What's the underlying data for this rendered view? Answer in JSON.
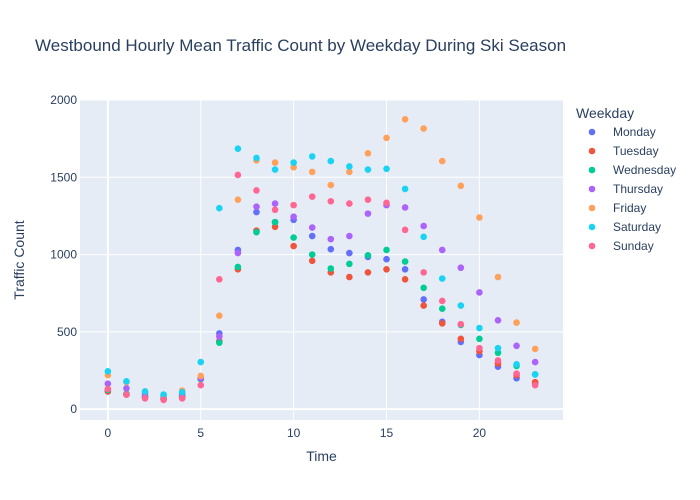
{
  "chart_data": {
    "type": "scatter",
    "title": "Westbound Hourly Mean Traffic Count by Weekday During Ski Season",
    "xlabel": "Time",
    "ylabel": "Traffic Count",
    "xlim": [
      -1.5,
      24.5
    ],
    "ylim": [
      -70,
      2000
    ],
    "x_ticks": [
      0,
      5,
      10,
      15,
      20
    ],
    "y_ticks": [
      0,
      500,
      1000,
      1500,
      2000
    ],
    "grid": true,
    "legend_title": "Weekday",
    "legend_position": "right",
    "x": [
      0,
      1,
      2,
      3,
      4,
      5,
      6,
      7,
      8,
      9,
      10,
      11,
      12,
      13,
      14,
      15,
      16,
      17,
      18,
      19,
      20,
      21,
      22,
      23
    ],
    "series": [
      {
        "name": "Monday",
        "color": "#636efa",
        "values": [
          115,
          95,
          80,
          65,
          80,
          195,
          490,
          1030,
          1275,
          1210,
          1225,
          1120,
          1035,
          1010,
          985,
          970,
          905,
          710,
          565,
          435,
          350,
          275,
          200,
          165
        ]
      },
      {
        "name": "Tuesday",
        "color": "#EF553B",
        "values": [
          115,
          95,
          80,
          65,
          75,
          195,
          440,
          905,
          1155,
          1180,
          1055,
          960,
          885,
          855,
          885,
          905,
          840,
          670,
          555,
          455,
          375,
          295,
          220,
          175
        ]
      },
      {
        "name": "Wednesday",
        "color": "#00cc96",
        "values": [
          125,
          100,
          80,
          70,
          90,
          195,
          430,
          920,
          1145,
          1210,
          1110,
          1000,
          910,
          940,
          995,
          1030,
          955,
          785,
          650,
          545,
          455,
          365,
          280,
          225
        ]
      },
      {
        "name": "Thursday",
        "color": "#ab63fa",
        "values": [
          165,
          135,
          100,
          85,
          100,
          200,
          470,
          1010,
          1310,
          1330,
          1245,
          1175,
          1100,
          1120,
          1265,
          1320,
          1305,
          1185,
          1030,
          915,
          755,
          575,
          410,
          305
        ]
      },
      {
        "name": "Friday",
        "color": "#FFA15A",
        "values": [
          220,
          175,
          115,
          90,
          120,
          215,
          605,
          1355,
          1610,
          1595,
          1565,
          1535,
          1450,
          1535,
          1655,
          1755,
          1875,
          1815,
          1605,
          1445,
          1240,
          855,
          560,
          390
        ]
      },
      {
        "name": "Saturday",
        "color": "#19d3f3",
        "values": [
          245,
          180,
          115,
          95,
          110,
          305,
          1300,
          1685,
          1625,
          1550,
          1595,
          1635,
          1605,
          1570,
          1550,
          1555,
          1425,
          1115,
          845,
          670,
          525,
          395,
          290,
          225
        ]
      },
      {
        "name": "Sunday",
        "color": "#FF6692",
        "values": [
          130,
          95,
          70,
          60,
          70,
          155,
          840,
          1515,
          1415,
          1290,
          1320,
          1375,
          1345,
          1330,
          1355,
          1335,
          1160,
          885,
          700,
          550,
          395,
          315,
          230,
          155
        ]
      }
    ]
  }
}
